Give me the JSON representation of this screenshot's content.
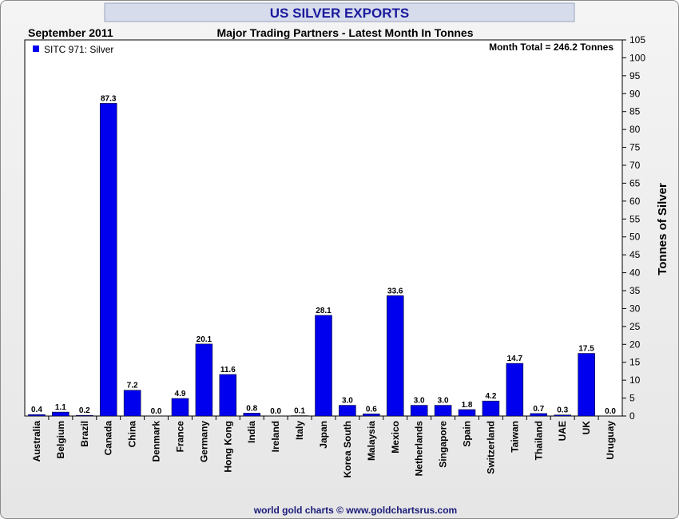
{
  "header": {
    "title": "US SILVER EXPORTS",
    "date": "September 2011",
    "subtitle": "Major Trading Partners - Latest Month In Tonnes",
    "month_total": "Month Total = 246.2 Tonnes"
  },
  "footer": {
    "credit": "world gold charts © www.goldchartsrus.com"
  },
  "colors": {
    "bar": "#0000ee",
    "title": "#1a1a9c",
    "footer": "#1a1a7a",
    "plot_bg": "#ffffff"
  },
  "chart_data": {
    "type": "bar",
    "title": "US SILVER EXPORTS",
    "subtitle": "Major Trading Partners - Latest Month In Tonnes",
    "ylabel": "Tonnes of Silver",
    "ylim": [
      0,
      105
    ],
    "ytick_step": 5,
    "y_axis_side": "right",
    "grid": false,
    "legend_placement": "top-left",
    "series": [
      {
        "name": "SITC 971: Silver",
        "values": [
          0.4,
          1.1,
          0.2,
          87.3,
          7.2,
          0.0,
          4.9,
          20.1,
          11.6,
          0.8,
          0.0,
          0.1,
          28.1,
          3.0,
          0.6,
          33.6,
          3.0,
          3.0,
          1.8,
          4.2,
          14.7,
          0.7,
          0.3,
          17.5,
          0.0
        ],
        "labels": [
          "0.4",
          "1.1",
          "0.2",
          "87.3",
          "7.2",
          "0.0",
          "4.9",
          "20.1",
          "11.6",
          "0.8",
          "0.0",
          "0.1",
          "28.1",
          "3.0",
          "0.6",
          "33.6",
          "3.0",
          "3.0",
          "1.8",
          "4.2",
          "14.7",
          "0.7",
          "0.3",
          "17.5",
          "0.0"
        ]
      }
    ],
    "categories": [
      "Australia",
      "Belgium",
      "Brazil",
      "Canada",
      "China",
      "Denmark",
      "France",
      "Germany",
      "Hong Kong",
      "India",
      "Ireland",
      "Italy",
      "Japan",
      "Korea South",
      "Malaysia",
      "Mexico",
      "Netherlands",
      "Singapore",
      "Spain",
      "Switzerland",
      "Taiwan",
      "Thailand",
      "UAE",
      "UK",
      "Uruguay"
    ]
  }
}
